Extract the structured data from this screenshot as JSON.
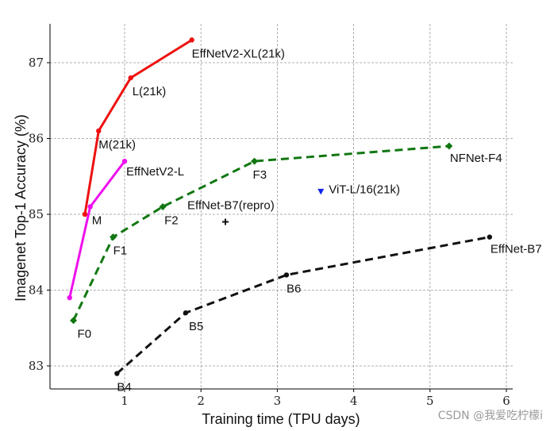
{
  "watermark": "CSDN @我爱吃柠檬i",
  "chart_data": {
    "type": "line",
    "title": "",
    "xlabel": "Training time (TPU days)",
    "ylabel": "Imagenet Top-1 Accuracy (%)",
    "xlim": [
      0,
      6.05
    ],
    "ylim": [
      82.9,
      87.5
    ],
    "xticks": [
      1,
      2,
      3,
      4,
      5,
      6
    ],
    "yticks": [
      83,
      84,
      85,
      86,
      87
    ],
    "grid": true,
    "series": [
      {
        "name": "EffNetV2 (21k)",
        "color": "#ee1111",
        "style": "solid",
        "marker": "circle",
        "x": [
          0.48,
          0.66,
          1.08,
          1.88
        ],
        "y": [
          85.0,
          86.1,
          86.8,
          87.3
        ],
        "labels": [
          "",
          "M(21k)",
          "L(21k)",
          "EffNetV2-XL(21k)"
        ]
      },
      {
        "name": "EffNetV2",
        "color": "#ee11ee",
        "style": "solid",
        "marker": "circle",
        "x": [
          0.28,
          0.55,
          1.0
        ],
        "y": [
          83.9,
          85.1,
          85.7
        ],
        "labels": [
          "",
          "M",
          "EffNetV2-L"
        ]
      },
      {
        "name": "NFNet",
        "color": "#117711",
        "style": "dashed",
        "marker": "diamond",
        "x": [
          0.33,
          0.85,
          1.5,
          2.7,
          5.25
        ],
        "y": [
          83.6,
          84.7,
          85.1,
          85.7,
          85.9
        ],
        "labels": [
          "F0",
          "F1",
          "F2",
          "F3",
          "NFNet-F4"
        ]
      },
      {
        "name": "EffNet",
        "color": "#111111",
        "style": "dashed",
        "marker": "circle",
        "x": [
          0.9,
          1.8,
          3.12,
          5.78
        ],
        "y": [
          82.9,
          83.7,
          84.2,
          84.7
        ],
        "labels": [
          "B4",
          "B5",
          "B6",
          "EffNet-B7"
        ]
      },
      {
        "name": "EffNet-B7(repro)",
        "color": "#111111",
        "style": "none",
        "marker": "plus",
        "x": [
          2.32
        ],
        "y": [
          84.9
        ],
        "labels": [
          "EffNet-B7(repro)"
        ]
      },
      {
        "name": "ViT-L/16(21k)",
        "color": "#1122ee",
        "style": "none",
        "marker": "triangle-down",
        "x": [
          3.57
        ],
        "y": [
          85.3
        ],
        "labels": [
          "ViT-L/16(21k)"
        ]
      }
    ]
  }
}
